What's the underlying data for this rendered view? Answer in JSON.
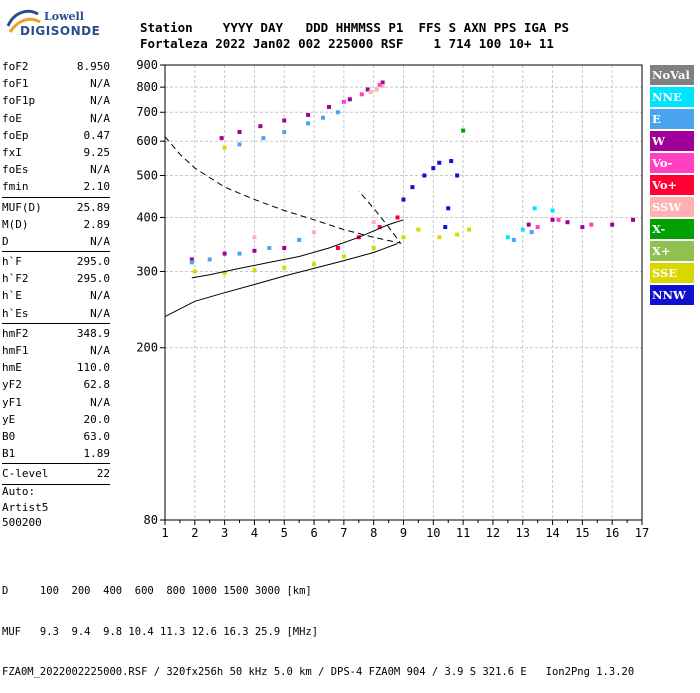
{
  "logo": {
    "line1": "Lowell",
    "line2": "DIGISONDE"
  },
  "header": {
    "row1": {
      "label": "Station",
      "date_label": "YYYY DAY",
      "doy_label": "DDD HHMMSS",
      "p1_label": "P1",
      "ffs_label": "FFS S AXN PPS IGA PS"
    },
    "row2": {
      "station": "Fortaleza",
      "date": "2022 Jan02",
      "doy_time": "002 225000",
      "p1": "RSF",
      "ffs": "   1 714 100 10+ 11"
    }
  },
  "params": [
    {
      "name": "foF2",
      "value": "8.950"
    },
    {
      "name": "foF1",
      "value": "N/A"
    },
    {
      "name": "foF1p",
      "value": "N/A"
    },
    {
      "name": "foE",
      "value": "N/A"
    },
    {
      "name": "foEp",
      "value": "0.47"
    },
    {
      "name": "fxI",
      "value": "9.25"
    },
    {
      "name": "foEs",
      "value": "N/A"
    },
    {
      "name": "fmin",
      "value": "2.10"
    },
    {
      "sep": true
    },
    {
      "name": "MUF(D)",
      "value": "25.89"
    },
    {
      "name": "M(D)",
      "value": "2.89"
    },
    {
      "name": "D",
      "value": "N/A"
    },
    {
      "sep": true
    },
    {
      "name": "h`F",
      "value": "295.0"
    },
    {
      "name": "h`F2",
      "value": "295.0"
    },
    {
      "name": "h`E",
      "value": "N/A"
    },
    {
      "name": "h`Es",
      "value": "N/A"
    },
    {
      "sep": true
    },
    {
      "name": "hmF2",
      "value": "348.9"
    },
    {
      "name": "hmF1",
      "value": "N/A"
    },
    {
      "name": "hmE",
      "value": "110.0"
    },
    {
      "name": "yF2",
      "value": "62.8"
    },
    {
      "name": "yF1",
      "value": "N/A"
    },
    {
      "name": "yE",
      "value": "20.0"
    },
    {
      "name": "B0",
      "value": "63.0"
    },
    {
      "name": "B1",
      "value": "1.89"
    },
    {
      "sep": true
    },
    {
      "name": "C-level",
      "value": "22"
    },
    {
      "sep": true
    }
  ],
  "auto": {
    "line1": "Auto:",
    "line2": "Artist5",
    "line3": "500200"
  },
  "footer": {
    "line1": "D     100  200  400  600  800 1000 1500 3000 [km]",
    "line2": "MUF   9.3  9.4  9.8 10.4 11.3 12.6 16.3 25.9 [MHz]",
    "line3": "FZA0M_2022002225000.RSF / 320fx256h 50 kHz 5.0 km / DPS-4 FZA0M 904 / 3.9 S 321.6 E   Ion2Png 1.3.20"
  },
  "legend": [
    {
      "label": "NoVal",
      "color": "#808080"
    },
    {
      "label": "NNE",
      "color": "#00e5ff"
    },
    {
      "label": "E",
      "color": "#4aa3ef"
    },
    {
      "label": "W",
      "color": "#a0009a"
    },
    {
      "label": "Vo-",
      "color": "#ff40c0"
    },
    {
      "label": "Vo+",
      "color": "#ff0030"
    },
    {
      "label": "SSW",
      "color": "#ffb0b0"
    },
    {
      "label": "X-",
      "color": "#00a000"
    },
    {
      "label": "X+",
      "color": "#90c050"
    },
    {
      "label": "SSE",
      "color": "#d8d800"
    },
    {
      "label": "NNW",
      "color": "#1010d0"
    }
  ],
  "chart_data": {
    "type": "scatter",
    "xlabel": "",
    "ylabel": "",
    "xlim": [
      1,
      17
    ],
    "ylim": [
      80,
      900
    ],
    "y_scale": "log",
    "x_ticks": [
      1,
      2,
      3,
      4,
      5,
      6,
      7,
      8,
      9,
      10,
      11,
      12,
      13,
      14,
      15,
      16,
      17
    ],
    "y_ticks": [
      80,
      200,
      300,
      400,
      500,
      600,
      700,
      800,
      900
    ],
    "grid": true,
    "series": [
      {
        "name": "W",
        "color": "#a0009a",
        "points": [
          [
            2.9,
            610
          ],
          [
            3.5,
            630
          ],
          [
            4.2,
            650
          ],
          [
            5.0,
            670
          ],
          [
            5.8,
            690
          ],
          [
            6.5,
            720
          ],
          [
            7.2,
            750
          ],
          [
            7.8,
            790
          ],
          [
            8.3,
            820
          ],
          [
            1.9,
            320
          ],
          [
            3,
            330
          ],
          [
            4,
            335
          ],
          [
            5,
            340
          ],
          [
            13.2,
            385
          ],
          [
            14,
            395
          ],
          [
            14.5,
            390
          ],
          [
            15,
            380
          ],
          [
            16,
            385
          ],
          [
            16.7,
            395
          ]
        ]
      },
      {
        "name": "E",
        "color": "#4aa3ef",
        "points": [
          [
            3.5,
            590
          ],
          [
            4.3,
            610
          ],
          [
            5.0,
            630
          ],
          [
            5.8,
            660
          ],
          [
            6.3,
            680
          ],
          [
            6.8,
            700
          ],
          [
            1.9,
            315
          ],
          [
            2.5,
            320
          ],
          [
            3.5,
            330
          ],
          [
            4.5,
            340
          ],
          [
            5.5,
            355
          ],
          [
            12.7,
            355
          ],
          [
            13.3,
            370
          ]
        ]
      },
      {
        "name": "SSW",
        "color": "#ffb0b0",
        "points": [
          [
            7.9,
            780
          ],
          [
            8.1,
            790
          ],
          [
            8.3,
            805
          ],
          [
            4,
            360
          ],
          [
            6,
            370
          ],
          [
            8,
            390
          ]
        ]
      },
      {
        "name": "Vo-",
        "color": "#ff40c0",
        "points": [
          [
            7.0,
            740
          ],
          [
            7.6,
            770
          ],
          [
            8.2,
            810
          ],
          [
            13.5,
            380
          ],
          [
            14.2,
            395
          ],
          [
            15.3,
            385
          ]
        ]
      },
      {
        "name": "NNW",
        "color": "#1010d0",
        "points": [
          [
            9.0,
            440
          ],
          [
            9.3,
            470
          ],
          [
            9.7,
            500
          ],
          [
            10.0,
            520
          ],
          [
            10.2,
            535
          ],
          [
            10.6,
            540
          ],
          [
            10.8,
            500
          ],
          [
            10.5,
            420
          ],
          [
            10.4,
            380
          ]
        ]
      },
      {
        "name": "SSE",
        "color": "#d8d800",
        "points": [
          [
            2,
            300
          ],
          [
            3,
            298
          ],
          [
            4,
            302
          ],
          [
            5,
            306
          ],
          [
            6,
            312
          ],
          [
            7,
            325
          ],
          [
            8,
            340
          ],
          [
            9,
            360
          ],
          [
            9.5,
            375
          ],
          [
            10.2,
            360
          ],
          [
            10.8,
            365
          ],
          [
            11.2,
            375
          ],
          [
            3,
            580
          ]
        ]
      },
      {
        "name": "NNE",
        "color": "#00e5ff",
        "points": [
          [
            12.5,
            360
          ],
          [
            13,
            375
          ],
          [
            13.4,
            420
          ],
          [
            14,
            415
          ]
        ]
      },
      {
        "name": "Vo+",
        "color": "#ff0030",
        "points": [
          [
            6.8,
            340
          ],
          [
            7.5,
            360
          ],
          [
            8.2,
            380
          ],
          [
            8.8,
            400
          ]
        ]
      },
      {
        "name": "X-",
        "color": "#00a000",
        "points": [
          [
            11,
            635
          ]
        ]
      }
    ],
    "trace_fit": [
      [
        1.9,
        290
      ],
      [
        2.5,
        295
      ],
      [
        3.5,
        305
      ],
      [
        4.5,
        315
      ],
      [
        5.5,
        325
      ],
      [
        6.5,
        340
      ],
      [
        7.5,
        360
      ],
      [
        8.5,
        385
      ],
      [
        9.0,
        395
      ]
    ],
    "lower_trace": [
      [
        1,
        236
      ],
      [
        2,
        256
      ],
      [
        3,
        268
      ],
      [
        4,
        280
      ],
      [
        5,
        293
      ],
      [
        6,
        305
      ],
      [
        7,
        318
      ],
      [
        8,
        332
      ],
      [
        8.8,
        348
      ]
    ],
    "profile_dashed": [
      [
        1,
        615
      ],
      [
        1.5,
        560
      ],
      [
        2,
        520
      ],
      [
        3,
        470
      ],
      [
        4,
        440
      ],
      [
        5,
        415
      ],
      [
        6,
        395
      ],
      [
        7,
        375
      ],
      [
        8,
        360
      ],
      [
        8.9,
        349
      ],
      [
        8.5,
        380
      ],
      [
        8,
        420
      ],
      [
        7.5,
        460
      ]
    ]
  }
}
